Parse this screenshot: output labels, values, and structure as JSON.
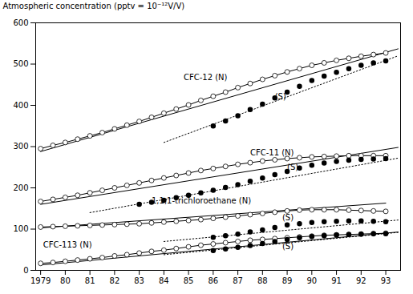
{
  "chart_data": {
    "type": "line",
    "ylabel": "Atmospheric concentration (pptv = 10⁻¹²V/V)",
    "color": "black",
    "xlim": [
      1978.8,
      1993.6
    ],
    "ylim": [
      0,
      600
    ],
    "xticks": [
      1979,
      {
        "value": 1980,
        "label": "80"
      },
      {
        "value": 1981,
        "label": "81"
      },
      {
        "value": 1982,
        "label": "82"
      },
      {
        "value": 1983,
        "label": "83"
      },
      {
        "value": 1984,
        "label": "84"
      },
      {
        "value": 1985,
        "label": "85"
      },
      {
        "value": 1986,
        "label": "86"
      },
      {
        "value": 1987,
        "label": "87"
      },
      {
        "value": 1988,
        "label": "88"
      },
      {
        "value": 1989,
        "label": "89"
      },
      {
        "value": 1990,
        "label": "90"
      },
      {
        "value": 1991,
        "label": "91"
      },
      {
        "value": 1992,
        "label": "92"
      },
      {
        "value": 1993,
        "label": "93"
      }
    ],
    "yticks": [
      0,
      100,
      200,
      300,
      400,
      500,
      600
    ],
    "grid": false,
    "series": [
      {
        "x": [
          1979,
          1979.5,
          1980,
          1980.5,
          1981,
          1981.5,
          1982,
          1982.5,
          1983,
          1983.5,
          1984,
          1984.5,
          1985,
          1985.5,
          1986,
          1986.5,
          1987,
          1987.5,
          1988,
          1988.5,
          1989,
          1989.5,
          1990,
          1990.5,
          1991,
          1991.5,
          1992,
          1992.5,
          1993
        ],
        "values": [
          295,
          303,
          310,
          318,
          326,
          334,
          343,
          352,
          361,
          371,
          381,
          391,
          401,
          412,
          422,
          432,
          443,
          453,
          463,
          472,
          481,
          489,
          497,
          503,
          509,
          514,
          519,
          523,
          527
        ],
        "marker": "open_circle",
        "line_style": "solid"
      },
      {
        "x": [
          1979,
          1993.5
        ],
        "values": [
          288,
          537
        ],
        "marker": "none",
        "line_style": "solid"
      },
      {
        "x": [
          1986,
          1986.5,
          1987,
          1987.5,
          1988,
          1988.5,
          1989,
          1989.5,
          1990,
          1990.5,
          1991,
          1991.5,
          1992,
          1992.5,
          1993
        ],
        "values": [
          350,
          362,
          375,
          390,
          403,
          418,
          432,
          446,
          460,
          471,
          480,
          489,
          497,
          503,
          508
        ],
        "marker": "filled_circle",
        "line_style": "none"
      },
      {
        "x": [
          1984,
          1993.5
        ],
        "values": [
          310,
          520
        ],
        "marker": "none",
        "line_style": "dotted"
      },
      {
        "x": [
          1979,
          1979.5,
          1980,
          1980.5,
          1981,
          1981.5,
          1982,
          1982.5,
          1983,
          1983.5,
          1984,
          1984.5,
          1985,
          1985.5,
          1986,
          1986.5,
          1987,
          1987.5,
          1988,
          1988.5,
          1989,
          1989.5,
          1990,
          1990.5,
          1991,
          1991.5,
          1992,
          1992.5,
          1993
        ],
        "values": [
          167,
          172,
          177,
          182,
          188,
          194,
          200,
          206,
          212,
          218,
          224,
          230,
          236,
          242,
          247,
          252,
          257,
          261,
          265,
          268,
          271,
          273,
          275,
          276,
          277,
          278,
          278,
          278,
          278
        ],
        "marker": "open_circle",
        "line_style": "solid"
      },
      {
        "x": [
          1979,
          1993.5
        ],
        "values": [
          160,
          298
        ],
        "marker": "none",
        "line_style": "solid"
      },
      {
        "x": [
          1983,
          1983.5,
          1984,
          1984.5,
          1985,
          1985.5,
          1986,
          1986.5,
          1987,
          1987.5,
          1988,
          1988.5,
          1989,
          1989.5,
          1990,
          1990.5,
          1991,
          1991.5,
          1992,
          1992.5,
          1993
        ],
        "values": [
          160,
          165,
          170,
          176,
          182,
          188,
          194,
          201,
          208,
          216,
          224,
          232,
          240,
          248,
          255,
          260,
          264,
          267,
          269,
          270,
          271
        ],
        "marker": "filled_circle",
        "line_style": "none"
      },
      {
        "x": [
          1981,
          1993.5
        ],
        "values": [
          140,
          272
        ],
        "marker": "none",
        "line_style": "dotted"
      },
      {
        "x": [
          1979,
          1979.5,
          1980,
          1980.5,
          1981,
          1981.5,
          1982,
          1982.5,
          1983,
          1983.5,
          1984,
          1984.5,
          1985,
          1985.5,
          1986,
          1986.5,
          1987,
          1987.5,
          1988,
          1988.5,
          1989,
          1989.5,
          1990,
          1990.5,
          1991,
          1991.5,
          1992,
          1992.5,
          1993
        ],
        "values": [
          105,
          106,
          107,
          108,
          109,
          110,
          111,
          112,
          113,
          115,
          117,
          119,
          121,
          123,
          126,
          129,
          132,
          135,
          138,
          141,
          144,
          146,
          147,
          147,
          147,
          146,
          145,
          144,
          143
        ],
        "marker": "open_circle",
        "line_style": "solid"
      },
      {
        "x": [
          1979,
          1993
        ],
        "values": [
          103,
          163
        ],
        "marker": "none",
        "line_style": "solid"
      },
      {
        "x": [
          1986,
          1986.5,
          1987,
          1987.5,
          1988,
          1988.5,
          1989,
          1989.5,
          1990,
          1990.5,
          1991,
          1991.5,
          1992,
          1992.5,
          1993
        ],
        "values": [
          80,
          84,
          88,
          93,
          98,
          104,
          110,
          113,
          116,
          118,
          119,
          120,
          120,
          119,
          118
        ],
        "marker": "filled_circle",
        "line_style": "none"
      },
      {
        "x": [
          1984,
          1993.5
        ],
        "values": [
          70,
          122
        ],
        "marker": "none",
        "line_style": "dotted"
      },
      {
        "x": [
          1979,
          1979.5,
          1980,
          1980.5,
          1981,
          1981.5,
          1982,
          1982.5,
          1983,
          1983.5,
          1984,
          1984.5,
          1985,
          1985.5,
          1986,
          1986.5,
          1987,
          1987.5,
          1988,
          1988.5,
          1989,
          1989.5,
          1990,
          1990.5,
          1991,
          1991.5,
          1992,
          1992.5,
          1993
        ],
        "values": [
          17,
          19,
          22,
          25,
          28,
          31,
          35,
          38,
          42,
          46,
          49,
          53,
          57,
          61,
          64,
          67,
          70,
          73,
          75,
          77,
          79,
          81,
          83,
          85,
          86,
          87,
          88,
          89,
          90
        ],
        "marker": "open_circle",
        "line_style": "solid"
      },
      {
        "x": [
          1979,
          1993.5
        ],
        "values": [
          13,
          93
        ],
        "marker": "none",
        "line_style": "solid"
      },
      {
        "x": [
          1986,
          1986.5,
          1987,
          1987.5,
          1988,
          1988.5,
          1989,
          1989.5,
          1990,
          1990.5,
          1991,
          1991.5,
          1992,
          1992.5,
          1993
        ],
        "values": [
          48,
          52,
          56,
          60,
          65,
          70,
          75,
          79,
          82,
          84,
          86,
          87,
          88,
          89,
          89
        ],
        "marker": "filled_circle",
        "line_style": "none"
      },
      {
        "x": [
          1984,
          1993.5
        ],
        "values": [
          38,
          92
        ],
        "marker": "none",
        "line_style": "dotted"
      }
    ],
    "annotations": [
      {
        "text": "CFC-12 (N)",
        "x": 1984.8,
        "y": 468
      },
      {
        "text": "(S)",
        "x": 1988.5,
        "y": 420
      },
      {
        "text": "CFC-11 (N)",
        "x": 1987.5,
        "y": 284
      },
      {
        "text": "(S)",
        "x": 1989.0,
        "y": 250
      },
      {
        "text": "1,1,1-trichloroethane (N)",
        "x": 1983.5,
        "y": 168
      },
      {
        "text": "(S)",
        "x": 1988.8,
        "y": 128
      },
      {
        "text": "CFC-113 (N)",
        "x": 1979.1,
        "y": 62
      },
      {
        "text": "(S)",
        "x": 1988.8,
        "y": 57
      }
    ]
  }
}
